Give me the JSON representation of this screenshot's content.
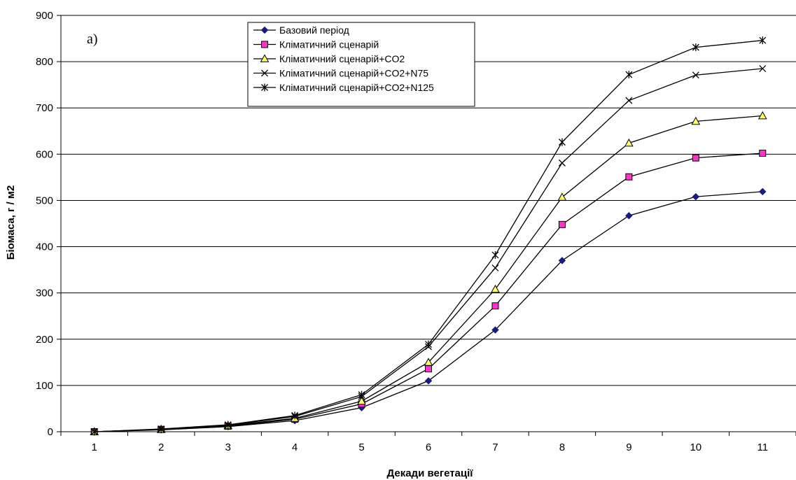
{
  "chart_data": {
    "type": "line",
    "panel_label": "а)",
    "xlabel": "Декади вегетації",
    "ylabel": "Біомаса, г / м2",
    "x": [
      1,
      2,
      3,
      4,
      5,
      6,
      7,
      8,
      9,
      10,
      11
    ],
    "x_ticks": [
      "1",
      "2",
      "3",
      "4",
      "5",
      "6",
      "7",
      "8",
      "9",
      "10",
      "11"
    ],
    "ylim": [
      0,
      900
    ],
    "y_ticks": [
      "0",
      "100",
      "200",
      "300",
      "400",
      "500",
      "600",
      "700",
      "800",
      "900"
    ],
    "grid": "horizontal",
    "legend_position": "top-center",
    "series": [
      {
        "name": "Базовий період",
        "marker": "diamond",
        "color": "#1a1a80",
        "values": [
          0,
          4,
          11,
          24,
          52,
          110,
          220,
          370,
          467,
          508,
          519
        ]
      },
      {
        "name": "Кліматичний сценарій",
        "marker": "square",
        "color": "#ff33cc",
        "values": [
          0,
          5,
          12,
          27,
          60,
          136,
          272,
          448,
          551,
          592,
          602
        ]
      },
      {
        "name": "Кліматичний сценарій+CO2",
        "marker": "triangle",
        "color": "#ffff66",
        "values": [
          0,
          5,
          13,
          29,
          66,
          150,
          308,
          507,
          624,
          671,
          683
        ]
      },
      {
        "name": "Кліматичний сценарій+CO2+N75",
        "marker": "x",
        "color": "#000000",
        "values": [
          0,
          5,
          14,
          33,
          76,
          184,
          354,
          581,
          716,
          771,
          785
        ]
      },
      {
        "name": "Кліматичний сценарій+CO2+N125",
        "marker": "star",
        "color": "#000000",
        "values": [
          0,
          6,
          15,
          35,
          80,
          189,
          382,
          626,
          772,
          831,
          846
        ]
      }
    ]
  }
}
